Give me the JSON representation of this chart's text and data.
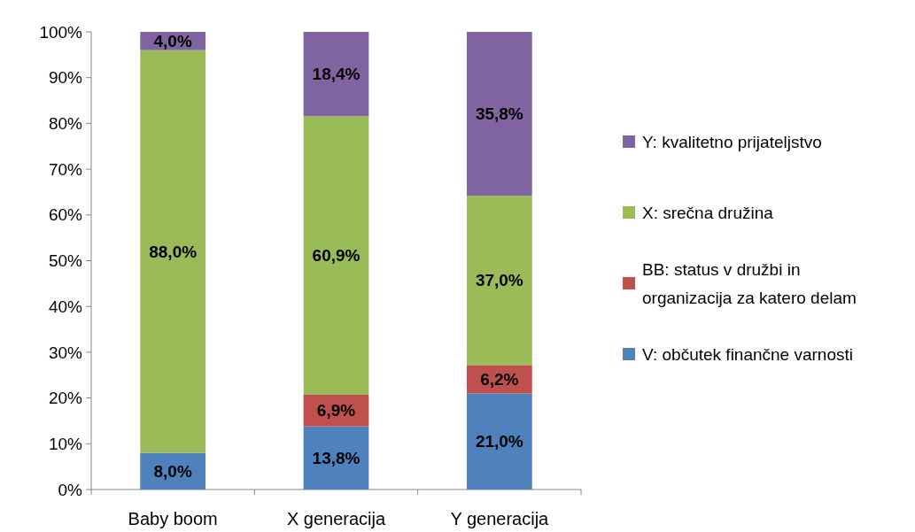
{
  "chart_data": {
    "type": "bar",
    "stacked": true,
    "categories": [
      "Baby boom",
      "X generacija",
      "Y generacija"
    ],
    "series": [
      {
        "name": "V: občutek finančne varnosti",
        "color": "#4f81bd",
        "values": [
          8.0,
          13.8,
          21.0
        ],
        "value_labels": [
          "8,0%",
          "13,8%",
          "21,0%"
        ]
      },
      {
        "name": "BB: status v družbi in organizacija za katero delam",
        "color": "#c0504d",
        "values": [
          0,
          6.9,
          6.2
        ],
        "value_labels": [
          null,
          "6,9%",
          "6,2%"
        ]
      },
      {
        "name": "X: srečna družina",
        "color": "#9bbb59",
        "values": [
          88.0,
          60.9,
          37.0
        ],
        "value_labels": [
          "88,0%",
          "60,9%",
          "37,0%"
        ]
      },
      {
        "name": "Y: kvalitetno prijateljstvo",
        "color": "#8064a2",
        "values": [
          4.0,
          18.4,
          35.8
        ],
        "value_labels": [
          "4,0%",
          "18,4%",
          "35,8%"
        ]
      }
    ],
    "ylim": [
      0,
      100
    ],
    "yticks": [
      {
        "value": 0,
        "label": "0%"
      },
      {
        "value": 10,
        "label": "10%"
      },
      {
        "value": 20,
        "label": "20%"
      },
      {
        "value": 30,
        "label": "30%"
      },
      {
        "value": 40,
        "label": "40%"
      },
      {
        "value": 50,
        "label": "50%"
      },
      {
        "value": 60,
        "label": "60%"
      },
      {
        "value": 70,
        "label": "70%"
      },
      {
        "value": 80,
        "label": "80%"
      },
      {
        "value": 90,
        "label": "90%"
      },
      {
        "value": 100,
        "label": "100%"
      }
    ],
    "legend": "right",
    "grid": false
  }
}
